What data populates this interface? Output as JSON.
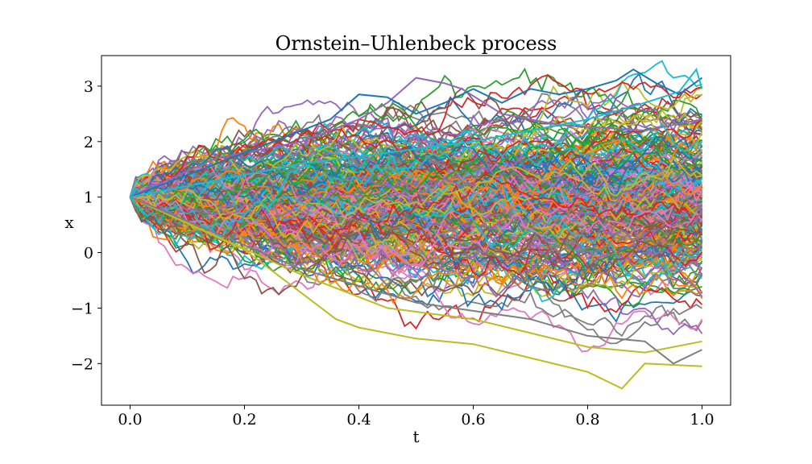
{
  "chart_data": {
    "type": "line",
    "title": "Ornstein–Uhlenbeck process",
    "xlabel": "t",
    "ylabel": "x",
    "xlim": [
      -0.05,
      1.05
    ],
    "ylim": [
      -2.75,
      3.55
    ],
    "x_ticks": [
      0.0,
      0.2,
      0.4,
      0.6,
      0.8,
      1.0
    ],
    "x_tick_labels": [
      "0.0",
      "0.2",
      "0.4",
      "0.6",
      "0.8",
      "1.0"
    ],
    "y_ticks": [
      -2,
      -1,
      0,
      1,
      2,
      3
    ],
    "y_tick_labels": [
      "−2",
      "−1",
      "0",
      "1",
      "2",
      "3"
    ],
    "grid": false,
    "legend": "none",
    "x": {
      "start": 0.0,
      "end": 1.0,
      "count": 101
    },
    "initial_value": 1.0,
    "num_series": 300,
    "series_note": "300 simulated paths starting at x = 1; individual values are not readable from the image",
    "highlighted_paths": [
      {
        "color": "#bcbd22",
        "points": [
          [
            0.0,
            1.0
          ],
          [
            0.2,
            0.05
          ],
          [
            0.36,
            -1.2
          ],
          [
            0.4,
            -1.35
          ],
          [
            0.5,
            -1.55
          ],
          [
            0.6,
            -1.65
          ],
          [
            0.7,
            -1.9
          ],
          [
            0.8,
            -2.15
          ],
          [
            0.86,
            -2.45
          ],
          [
            0.9,
            -2.0
          ],
          [
            1.0,
            -2.05
          ]
        ]
      },
      {
        "color": "#bcbd22",
        "points": [
          [
            0.0,
            1.0
          ],
          [
            0.3,
            -0.4
          ],
          [
            0.45,
            -1.0
          ],
          [
            0.6,
            -1.2
          ],
          [
            0.7,
            -1.45
          ],
          [
            0.8,
            -1.7
          ],
          [
            0.9,
            -1.8
          ],
          [
            1.0,
            -1.6
          ]
        ]
      },
      {
        "color": "#7f7f7f",
        "points": [
          [
            0.0,
            1.0
          ],
          [
            0.3,
            -0.3
          ],
          [
            0.5,
            -0.9
          ],
          [
            0.7,
            -1.2
          ],
          [
            0.8,
            -1.5
          ],
          [
            0.9,
            -1.6
          ],
          [
            0.95,
            -2.0
          ],
          [
            1.0,
            -1.75
          ]
        ]
      },
      {
        "color": "#9467bd",
        "points": [
          [
            0.0,
            1.0
          ],
          [
            0.15,
            1.7
          ],
          [
            0.3,
            2.0
          ],
          [
            0.4,
            2.4
          ],
          [
            0.45,
            2.7
          ],
          [
            0.5,
            3.15
          ],
          [
            0.55,
            3.05
          ],
          [
            0.58,
            2.95
          ],
          [
            0.65,
            2.5
          ],
          [
            0.75,
            2.3
          ],
          [
            0.9,
            2.2
          ],
          [
            1.0,
            2.4
          ]
        ]
      },
      {
        "color": "#1f77b4",
        "points": [
          [
            0.0,
            1.0
          ],
          [
            0.2,
            1.8
          ],
          [
            0.35,
            2.4
          ],
          [
            0.4,
            2.85
          ],
          [
            0.45,
            2.8
          ],
          [
            0.5,
            2.5
          ],
          [
            0.55,
            2.7
          ],
          [
            0.6,
            2.95
          ],
          [
            0.65,
            2.7
          ],
          [
            0.7,
            2.95
          ],
          [
            0.75,
            2.85
          ],
          [
            0.8,
            2.95
          ],
          [
            0.85,
            3.1
          ],
          [
            0.88,
            3.3
          ],
          [
            0.92,
            3.05
          ],
          [
            0.96,
            2.85
          ],
          [
            1.0,
            3.15
          ]
        ]
      },
      {
        "color": "#17becf",
        "points": [
          [
            0.0,
            1.0
          ],
          [
            0.3,
            1.6
          ],
          [
            0.6,
            2.0
          ],
          [
            0.8,
            2.4
          ],
          [
            0.9,
            2.7
          ],
          [
            0.96,
            2.9
          ],
          [
            0.99,
            3.3
          ],
          [
            1.0,
            2.95
          ]
        ]
      }
    ]
  },
  "colors": {
    "palette": [
      "#1f77b4",
      "#ff7f0e",
      "#2ca02c",
      "#d62728",
      "#9467bd",
      "#8c564b",
      "#e377c2",
      "#7f7f7f",
      "#bcbd22",
      "#17becf"
    ]
  }
}
